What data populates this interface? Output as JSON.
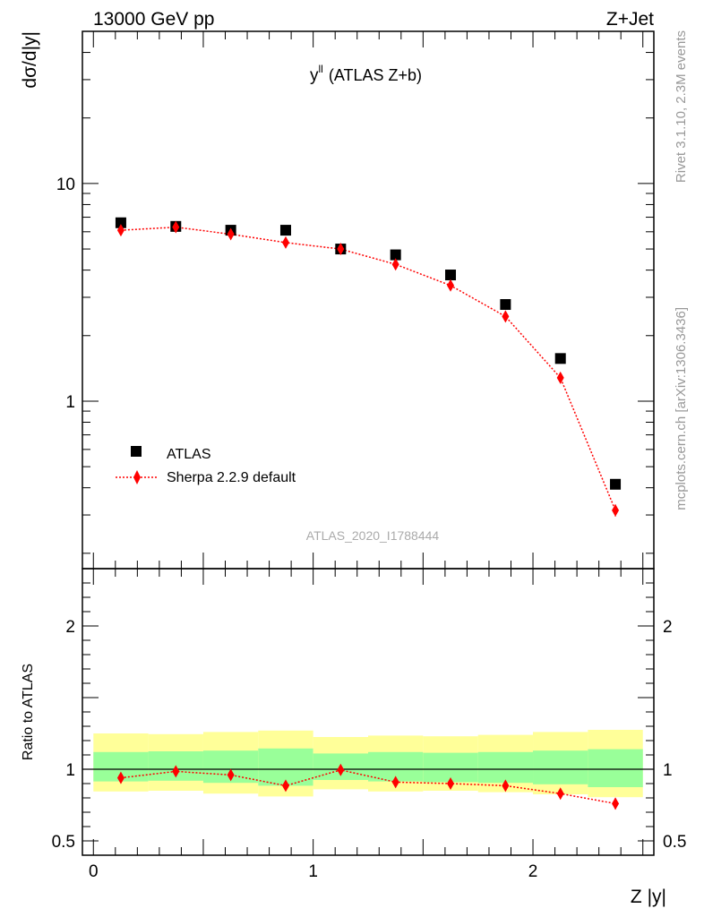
{
  "header": {
    "energy_label": "13000 GeV pp",
    "process_label": "Z+Jet"
  },
  "side_labels": {
    "rivet": "Rivet 3.1.10,  2.3M events",
    "mcplots": "mcplots.cern.ch [arXiv:1306.3436]"
  },
  "chart_data": [
    {
      "type": "scatter",
      "panel": "main",
      "title_main": "y",
      "title_sup": "ll",
      "title_rest": "(ATLAS Z+b)",
      "ylabel": "dσ/d|y|",
      "yscale": "log",
      "ylim": [
        0.17,
        50
      ],
      "xlim": [
        -0.05,
        2.55
      ],
      "ytick_labels": [
        {
          "value": 10,
          "label": "10"
        },
        {
          "value": 1,
          "label": "1"
        }
      ],
      "watermark": "ATLAS_2020_I1788444",
      "legend": [
        {
          "name": "ATLAS",
          "marker": "square",
          "color": "#000000"
        },
        {
          "name": "Sherpa 2.2.9 default",
          "marker": "diamond",
          "color": "#ff0000"
        }
      ],
      "series": [
        {
          "name": "ATLAS",
          "x": [
            0.125,
            0.375,
            0.625,
            0.875,
            1.125,
            1.375,
            1.625,
            1.875,
            2.125,
            2.375
          ],
          "xerr": 0.125,
          "values": [
            6.6,
            6.35,
            6.1,
            6.1,
            5.0,
            4.7,
            3.8,
            2.78,
            1.57,
            0.415
          ]
        },
        {
          "name": "Sherpa 2.2.9 default",
          "x": [
            0.125,
            0.375,
            0.625,
            0.875,
            1.125,
            1.375,
            1.625,
            1.875,
            2.125,
            2.375
          ],
          "values": [
            6.1,
            6.3,
            5.85,
            5.35,
            5.0,
            4.25,
            3.4,
            2.45,
            1.28,
            0.315
          ],
          "yerr": [
            0.06,
            0.06,
            0.06,
            0.06,
            0.06,
            0.06,
            0.05,
            0.04,
            0.03,
            0.02
          ]
        }
      ]
    },
    {
      "type": "line",
      "panel": "ratio",
      "ylabel": "Ratio to ATLAS",
      "xlabel": "Z |y|",
      "ylim": [
        0.4,
        2.4
      ],
      "xlim": [
        -0.05,
        2.55
      ],
      "xtick_labels": [
        {
          "value": 0,
          "label": "0"
        },
        {
          "value": 1,
          "label": "1"
        },
        {
          "value": 2,
          "label": "2"
        }
      ],
      "ytick_labels": [
        {
          "value": 2,
          "label": "2"
        },
        {
          "value": 1,
          "label": "1"
        },
        {
          "value": 0.5,
          "label": "0.5"
        }
      ],
      "bands": {
        "x_lo": [
          0.0,
          0.25,
          0.5,
          0.75,
          1.0,
          1.25,
          1.5,
          1.75,
          2.0,
          2.25
        ],
        "x_hi": [
          0.25,
          0.5,
          0.75,
          1.0,
          1.25,
          1.5,
          1.75,
          2.0,
          2.25,
          2.5
        ],
        "stat_lo": [
          0.915,
          0.92,
          0.905,
          0.885,
          0.925,
          0.915,
          0.91,
          0.905,
          0.895,
          0.875
        ],
        "stat_hi": [
          1.12,
          1.125,
          1.13,
          1.145,
          1.11,
          1.12,
          1.115,
          1.12,
          1.13,
          1.14
        ],
        "total_lo": [
          0.845,
          0.85,
          0.83,
          0.81,
          0.86,
          0.845,
          0.85,
          0.84,
          0.825,
          0.805
        ],
        "total_hi": [
          1.25,
          1.245,
          1.26,
          1.27,
          1.225,
          1.235,
          1.23,
          1.24,
          1.26,
          1.275
        ],
        "stat_color": "#99ff99",
        "total_color": "#ffff99"
      },
      "series": [
        {
          "name": "Sherpa 2.2.9 default",
          "x": [
            0.125,
            0.375,
            0.625,
            0.875,
            1.125,
            1.375,
            1.625,
            1.875,
            2.125,
            2.375
          ],
          "values": [
            0.94,
            0.985,
            0.96,
            0.885,
            0.995,
            0.91,
            0.9,
            0.885,
            0.83,
            0.76
          ],
          "yerr": [
            0.01,
            0.01,
            0.01,
            0.01,
            0.01,
            0.01,
            0.01,
            0.015,
            0.02,
            0.04
          ],
          "color": "#ff0000"
        }
      ]
    }
  ]
}
